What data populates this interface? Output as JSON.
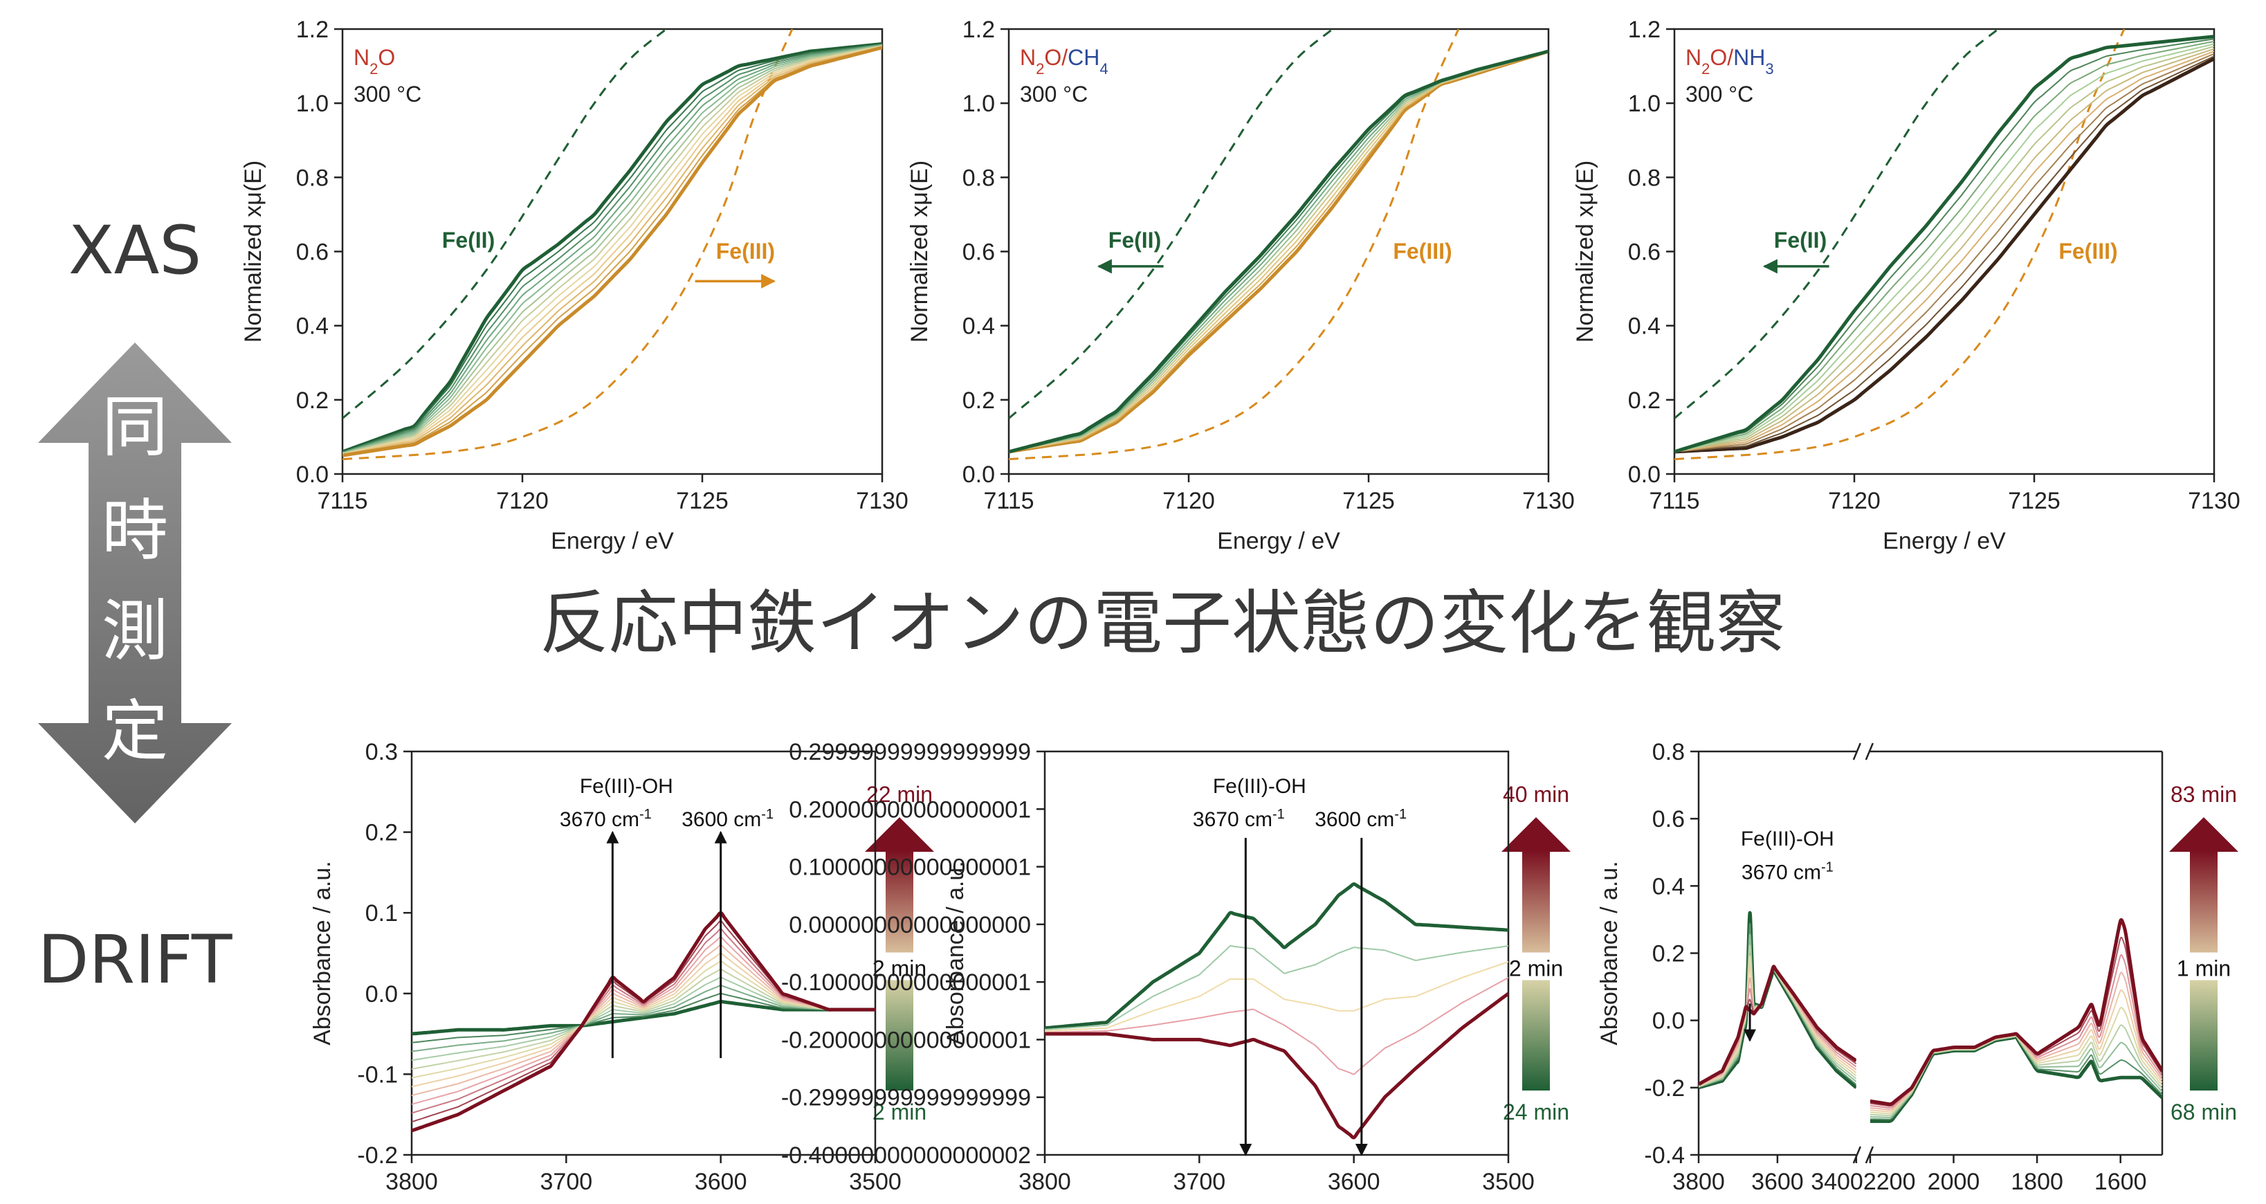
{
  "side": {
    "xas_label": "XAS",
    "drift_label": "DRIFT",
    "arrow_chars": [
      "同",
      "時",
      "測",
      "定"
    ],
    "arrow_color_top": "#8e8e8e",
    "arrow_color_bottom": "#6e6e6e"
  },
  "caption": "反応中鉄イオンの電子状態の変化を観察",
  "colors": {
    "green_dark": "#1f5f35",
    "orange": "#d98a1c",
    "red_dark": "#7a1020",
    "n2o_red": "#c0392b",
    "ch4_blue": "#2c4a9a"
  },
  "chart_data": [
    {
      "type": "line",
      "panel": "xas-1",
      "xlabel": "Energy / eV",
      "ylabel": "Normalized xμ(E)",
      "xlim": [
        7115,
        7130
      ],
      "ylim": [
        0.0,
        1.2
      ],
      "xticks": [
        7115,
        7120,
        7125,
        7130
      ],
      "yticks": [
        0.0,
        0.2,
        0.4,
        0.6,
        0.8,
        1.0,
        1.2
      ],
      "gas_parts": [
        {
          "text": "N",
          "color": "red"
        },
        {
          "text": "2",
          "sub": true,
          "color": "red"
        },
        {
          "text": "O",
          "color": "red"
        }
      ],
      "temperature": "300 °C",
      "fe2_label": "Fe(II)",
      "fe3_label": "Fe(III)",
      "arrow_direction": "right",
      "reference": {
        "fe2_dashed": {
          "x": [
            7115,
            7117,
            7119,
            7121,
            7122,
            7123,
            7124
          ],
          "y": [
            0.15,
            0.32,
            0.55,
            0.85,
            1.0,
            1.12,
            1.2
          ]
        },
        "fe3_dashed": {
          "x": [
            7115,
            7118,
            7120,
            7122,
            7124,
            7125.5,
            7126.5,
            7127.5
          ],
          "y": [
            0.04,
            0.06,
            0.1,
            0.2,
            0.42,
            0.7,
            0.98,
            1.2
          ]
        }
      },
      "series": [
        {
          "role": "first",
          "x": [
            7115,
            7117,
            7118,
            7119,
            7120,
            7121,
            7122,
            7123,
            7124,
            7125,
            7126,
            7127,
            7128,
            7130
          ],
          "y": [
            0.06,
            0.13,
            0.25,
            0.42,
            0.55,
            0.62,
            0.7,
            0.82,
            0.95,
            1.05,
            1.1,
            1.12,
            1.14,
            1.16
          ]
        },
        {
          "role": "last",
          "x": [
            7115,
            7117,
            7118,
            7119,
            7120,
            7121,
            7122,
            7123,
            7124,
            7125,
            7126,
            7127,
            7128,
            7130
          ],
          "y": [
            0.05,
            0.08,
            0.13,
            0.2,
            0.3,
            0.4,
            0.48,
            0.58,
            0.7,
            0.84,
            0.97,
            1.06,
            1.1,
            1.15
          ]
        }
      ],
      "n_intermediate": 10
    },
    {
      "type": "line",
      "panel": "xas-2",
      "xlabel": "Energy / eV",
      "ylabel": "Normalized xμ(E)",
      "xlim": [
        7115,
        7130
      ],
      "ylim": [
        0.0,
        1.2
      ],
      "xticks": [
        7115,
        7120,
        7125,
        7130
      ],
      "yticks": [
        0.0,
        0.2,
        0.4,
        0.6,
        0.8,
        1.0,
        1.2
      ],
      "gas_parts": [
        {
          "text": "N",
          "color": "red"
        },
        {
          "text": "2",
          "sub": true,
          "color": "red"
        },
        {
          "text": "O",
          "color": "red"
        },
        {
          "text": "/",
          "color": "red"
        },
        {
          "text": "CH",
          "color": "blue"
        },
        {
          "text": "4",
          "sub": true,
          "color": "blue"
        }
      ],
      "temperature": "300 °C",
      "fe2_label": "Fe(II)",
      "fe3_label": "Fe(III)",
      "arrow_direction": "left",
      "reference": {
        "fe2_dashed": {
          "x": [
            7115,
            7117,
            7119,
            7121,
            7122,
            7123,
            7124
          ],
          "y": [
            0.15,
            0.32,
            0.55,
            0.85,
            1.0,
            1.12,
            1.2
          ]
        },
        "fe3_dashed": {
          "x": [
            7115,
            7118,
            7120,
            7122,
            7124,
            7125.5,
            7126.5,
            7127.5
          ],
          "y": [
            0.04,
            0.06,
            0.1,
            0.2,
            0.42,
            0.7,
            0.98,
            1.2
          ]
        }
      },
      "series": [
        {
          "role": "first",
          "x": [
            7115,
            7117,
            7118,
            7119,
            7120,
            7121,
            7122,
            7123,
            7124,
            7125,
            7126,
            7127,
            7128,
            7130
          ],
          "y": [
            0.06,
            0.09,
            0.14,
            0.22,
            0.32,
            0.41,
            0.5,
            0.6,
            0.72,
            0.85,
            0.98,
            1.05,
            1.08,
            1.14
          ]
        },
        {
          "role": "last",
          "x": [
            7115,
            7117,
            7118,
            7119,
            7120,
            7121,
            7122,
            7123,
            7124,
            7125,
            7126,
            7127,
            7128,
            7130
          ],
          "y": [
            0.06,
            0.11,
            0.17,
            0.27,
            0.38,
            0.49,
            0.59,
            0.7,
            0.82,
            0.93,
            1.02,
            1.06,
            1.09,
            1.14
          ]
        }
      ],
      "n_intermediate": 6
    },
    {
      "type": "line",
      "panel": "xas-3",
      "xlabel": "Energy / eV",
      "ylabel": "Normalized xμ(E)",
      "xlim": [
        7115,
        7130
      ],
      "ylim": [
        0.0,
        1.2
      ],
      "xticks": [
        7115,
        7120,
        7125,
        7130
      ],
      "yticks": [
        0.0,
        0.2,
        0.4,
        0.6,
        0.8,
        1.0,
        1.2
      ],
      "gas_parts": [
        {
          "text": "N",
          "color": "red"
        },
        {
          "text": "2",
          "sub": true,
          "color": "red"
        },
        {
          "text": "O",
          "color": "red"
        },
        {
          "text": "/",
          "color": "red"
        },
        {
          "text": "NH",
          "color": "blue"
        },
        {
          "text": "3",
          "sub": true,
          "color": "blue"
        }
      ],
      "temperature": "300 °C",
      "fe2_label": "Fe(II)",
      "fe3_label": "Fe(III)",
      "arrow_direction": "left",
      "reference": {
        "fe2_dashed": {
          "x": [
            7115,
            7117,
            7119,
            7121,
            7122,
            7123,
            7124
          ],
          "y": [
            0.15,
            0.32,
            0.55,
            0.85,
            1.0,
            1.12,
            1.2
          ]
        },
        "fe3_dashed": {
          "x": [
            7115,
            7118,
            7120,
            7122,
            7124,
            7125.5,
            7126.5,
            7127.5
          ],
          "y": [
            0.04,
            0.06,
            0.1,
            0.2,
            0.42,
            0.7,
            0.98,
            1.2
          ]
        }
      },
      "series": [
        {
          "role": "first",
          "x": [
            7115,
            7117,
            7118,
            7119,
            7120,
            7121,
            7122,
            7123,
            7124,
            7125,
            7126,
            7127,
            7128,
            7130
          ],
          "y": [
            0.06,
            0.07,
            0.1,
            0.14,
            0.2,
            0.28,
            0.37,
            0.47,
            0.58,
            0.7,
            0.82,
            0.94,
            1.02,
            1.12
          ]
        },
        {
          "role": "last",
          "x": [
            7115,
            7117,
            7118,
            7119,
            7120,
            7121,
            7122,
            7123,
            7124,
            7125,
            7126,
            7127,
            7128,
            7130
          ],
          "y": [
            0.06,
            0.12,
            0.2,
            0.31,
            0.44,
            0.56,
            0.67,
            0.79,
            0.92,
            1.04,
            1.12,
            1.15,
            1.16,
            1.18
          ]
        }
      ],
      "n_intermediate": 8
    },
    {
      "type": "line",
      "panel": "drift-1",
      "xlabel": "Wavenumber / cm⁻¹",
      "ylabel": "Absorbance / a.u.",
      "xlim": [
        3800,
        3500
      ],
      "ylim": [
        -0.2,
        0.3
      ],
      "xticks": [
        3800,
        3700,
        3600,
        3500
      ],
      "yticks": [
        -0.2,
        -0.1,
        0.0,
        0.1,
        0.2,
        0.3
      ],
      "annotation_title": "Fe(III)-OH",
      "peak_labels": [
        {
          "text": "3670 cm",
          "sup": "-1",
          "x": 3670
        },
        {
          "text": "3600 cm",
          "sup": "-1",
          "x": 3600
        }
      ],
      "arrows": [
        {
          "x": 3670,
          "from": -0.08,
          "to": 0.2
        },
        {
          "x": 3600,
          "from": -0.08,
          "to": 0.2
        }
      ],
      "colorbar_top": "22 min",
      "colorbar_mid": "2 min",
      "colorbar_bottom": "2 min",
      "series": [
        {
          "role": "first",
          "x": [
            3800,
            3770,
            3740,
            3710,
            3690,
            3670,
            3650,
            3630,
            3610,
            3600,
            3580,
            3560,
            3530,
            3500
          ],
          "y": [
            -0.05,
            -0.045,
            -0.045,
            -0.04,
            -0.04,
            -0.035,
            -0.03,
            -0.025,
            -0.015,
            -0.01,
            -0.015,
            -0.02,
            -0.02,
            -0.02
          ]
        },
        {
          "role": "last",
          "x": [
            3800,
            3770,
            3740,
            3710,
            3690,
            3670,
            3650,
            3630,
            3610,
            3600,
            3580,
            3560,
            3530,
            3500
          ],
          "y": [
            -0.17,
            -0.15,
            -0.12,
            -0.09,
            -0.04,
            0.02,
            -0.01,
            0.02,
            0.08,
            0.1,
            0.05,
            0.0,
            -0.02,
            -0.02
          ]
        }
      ],
      "n_intermediate": 10
    },
    {
      "type": "line",
      "panel": "drift-2",
      "xlabel": "Wavenumber / cm⁻¹",
      "ylabel": "Absorbance / a.u.",
      "xlim": [
        3800,
        3500
      ],
      "ylim": [
        -0.4,
        0.3
      ],
      "xticks": [
        3800,
        3700,
        3600,
        3500
      ],
      "yticks": [
        -0.4,
        -0.3,
        -0.2,
        -0.1,
        0.0,
        0.1,
        0.2,
        0.3
      ],
      "annotation_title": "Fe(III)-OH",
      "peak_labels": [
        {
          "text": "3670 cm",
          "sup": "-1",
          "x": 3670
        },
        {
          "text": "3600 cm",
          "sup": "-1",
          "x": 3600
        }
      ],
      "arrows": [
        {
          "x": 3670,
          "from": 0.15,
          "to": -0.4
        },
        {
          "x": 3595,
          "from": 0.15,
          "to": -0.4
        }
      ],
      "colorbar_top": "40 min",
      "colorbar_mid": "2 min",
      "colorbar_bottom": "24 min",
      "series": [
        {
          "role": "first",
          "x": [
            3800,
            3760,
            3730,
            3700,
            3680,
            3665,
            3645,
            3625,
            3610,
            3600,
            3580,
            3560,
            3530,
            3500
          ],
          "y": [
            -0.18,
            -0.17,
            -0.1,
            -0.05,
            0.02,
            0.01,
            -0.04,
            0.0,
            0.05,
            0.07,
            0.04,
            0.0,
            -0.005,
            -0.01
          ]
        },
        {
          "role": "last",
          "x": [
            3800,
            3760,
            3730,
            3700,
            3680,
            3665,
            3645,
            3625,
            3610,
            3600,
            3580,
            3560,
            3530,
            3500
          ],
          "y": [
            -0.19,
            -0.19,
            -0.2,
            -0.2,
            -0.21,
            -0.2,
            -0.22,
            -0.28,
            -0.35,
            -0.37,
            -0.3,
            -0.25,
            -0.18,
            -0.12
          ]
        }
      ],
      "n_intermediate": 3
    },
    {
      "type": "line",
      "panel": "drift-3",
      "xlabel": "Wavenumber / cm⁻¹",
      "ylabel": "Absorbance / a.u.",
      "broken_axis": true,
      "xlim_left": [
        3800,
        3400
      ],
      "xlim_right": [
        2200,
        1500
      ],
      "ylim": [
        -0.4,
        0.8
      ],
      "xticks_left": [
        3800,
        3600,
        3400
      ],
      "xticks_right": [
        2200,
        2000,
        1800,
        1600
      ],
      "xtick_labels_left": [
        "3800",
        "3600",
        "3400"
      ],
      "xtick_labels_right": [
        "2200",
        "2000",
        "1800",
        "1600"
      ],
      "yticks": [
        -0.4,
        -0.2,
        0.0,
        0.2,
        0.4,
        0.6,
        0.8
      ],
      "annotation_title": "Fe(III)-OH",
      "peak_labels": [
        {
          "text": "3670 cm",
          "sup": "-1",
          "x": 3670
        }
      ],
      "arrows": [
        {
          "x": 3670,
          "from": 0.05,
          "to": -0.06
        }
      ],
      "colorbar_top": "83 min",
      "colorbar_mid": "1 min",
      "colorbar_bottom": "68 min",
      "series": [
        {
          "role": "first",
          "left": {
            "x": [
              3800,
              3740,
              3700,
              3680,
              3670,
              3660,
              3640,
              3610,
              3560,
              3500,
              3450,
              3400
            ],
            "y": [
              -0.2,
              -0.18,
              -0.12,
              0.0,
              0.32,
              0.05,
              0.04,
              0.15,
              0.05,
              -0.08,
              -0.15,
              -0.2
            ]
          },
          "right": {
            "x": [
              2200,
              2150,
              2100,
              2050,
              2000,
              1950,
              1900,
              1850,
              1800,
              1700,
              1670,
              1650,
              1600,
              1550,
              1500
            ],
            "y": [
              -0.3,
              -0.3,
              -0.22,
              -0.1,
              -0.09,
              -0.09,
              -0.06,
              -0.05,
              -0.15,
              -0.17,
              -0.12,
              -0.18,
              -0.17,
              -0.17,
              -0.23
            ]
          }
        },
        {
          "role": "last",
          "left": {
            "x": [
              3800,
              3740,
              3700,
              3680,
              3670,
              3660,
              3640,
              3610,
              3560,
              3500,
              3450,
              3400
            ],
            "y": [
              -0.19,
              -0.15,
              -0.05,
              0.04,
              0.03,
              0.02,
              0.05,
              0.16,
              0.08,
              -0.02,
              -0.08,
              -0.12
            ]
          },
          "right": {
            "x": [
              2200,
              2150,
              2100,
              2050,
              2000,
              1950,
              1900,
              1850,
              1800,
              1700,
              1670,
              1650,
              1600,
              1590,
              1550,
              1500
            ],
            "y": [
              -0.24,
              -0.25,
              -0.2,
              -0.09,
              -0.08,
              -0.08,
              -0.05,
              -0.04,
              -0.1,
              -0.02,
              0.05,
              -0.02,
              0.3,
              0.28,
              -0.05,
              -0.15
            ]
          }
        }
      ],
      "n_intermediate": 8
    }
  ]
}
